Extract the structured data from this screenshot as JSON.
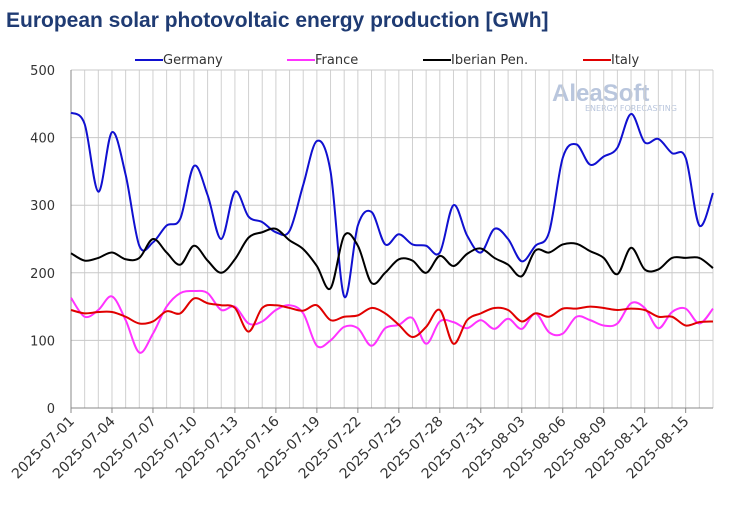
{
  "chart_data": {
    "type": "line",
    "title": "European solar photovoltaic energy production [GWh]",
    "annotations": [
      "AleaSoft",
      "ENERGY FORECASTING"
    ],
    "categories": [
      "2025-07-01",
      null,
      null,
      "2025-07-04",
      null,
      null,
      "2025-07-07",
      null,
      null,
      "2025-07-10",
      null,
      null,
      "2025-07-13",
      null,
      null,
      "2025-07-16",
      null,
      null,
      "2025-07-19",
      null,
      null,
      "2025-07-22",
      null,
      null,
      "2025-07-25",
      null,
      null,
      "2025-07-28",
      null,
      null,
      "2025-07-31",
      null,
      null,
      "2025-08-03",
      null,
      null,
      "2025-08-06",
      null,
      null,
      "2025-08-09",
      null,
      null,
      "2025-08-12",
      null,
      null,
      "2025-08-15",
      null,
      null
    ],
    "series": [
      {
        "name": "Germany",
        "color": "#1010d0",
        "values": [
          437,
          420,
          320,
          408,
          345,
          240,
          245,
          270,
          280,
          358,
          315,
          250,
          320,
          283,
          275,
          260,
          262,
          330,
          395,
          350,
          165,
          270,
          290,
          242,
          257,
          242,
          240,
          230,
          300,
          255,
          230,
          265,
          250,
          217,
          240,
          260,
          370,
          390,
          360,
          372,
          385,
          435,
          393,
          398,
          377,
          370,
          270,
          318
        ]
      },
      {
        "name": "France",
        "color": "#ff33ff",
        "values": [
          163,
          135,
          145,
          165,
          130,
          82,
          110,
          150,
          170,
          173,
          170,
          145,
          150,
          125,
          128,
          145,
          152,
          140,
          92,
          100,
          120,
          118,
          92,
          118,
          123,
          133,
          95,
          128,
          127,
          118,
          130,
          117,
          132,
          117,
          140,
          112,
          110,
          135,
          130,
          122,
          125,
          155,
          148,
          118,
          142,
          147,
          125,
          147
        ]
      },
      {
        "name": "Iberian Pen.",
        "color": "#000000",
        "values": [
          229,
          218,
          222,
          230,
          220,
          222,
          250,
          230,
          212,
          240,
          218,
          200,
          220,
          252,
          260,
          265,
          248,
          235,
          210,
          177,
          255,
          240,
          185,
          200,
          220,
          218,
          200,
          225,
          210,
          228,
          236,
          222,
          212,
          195,
          233,
          230,
          242,
          243,
          232,
          222,
          198,
          237,
          205,
          205,
          222,
          222,
          222,
          207
        ]
      },
      {
        "name": "Italy",
        "color": "#e00000",
        "values": [
          145,
          140,
          142,
          142,
          135,
          125,
          128,
          143,
          140,
          162,
          155,
          152,
          148,
          113,
          148,
          152,
          148,
          144,
          152,
          130,
          135,
          137,
          148,
          140,
          123,
          105,
          120,
          145,
          95,
          130,
          140,
          148,
          145,
          128,
          140,
          135,
          147,
          147,
          150,
          148,
          145,
          147,
          145,
          135,
          135,
          122,
          127,
          128
        ]
      }
    ],
    "ylim": [
      0,
      500
    ],
    "yticks": [
      0,
      100,
      200,
      300,
      400,
      500
    ],
    "grid": true,
    "legend": "top"
  }
}
